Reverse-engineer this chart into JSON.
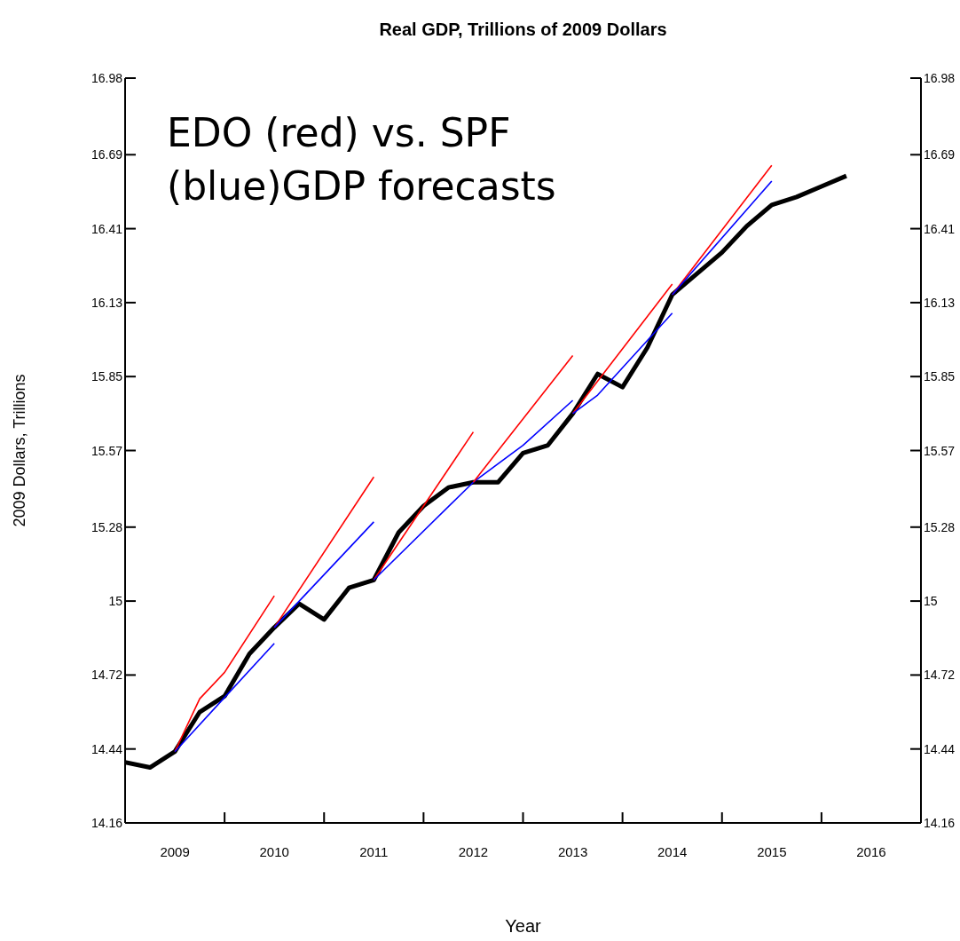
{
  "chart_data": {
    "type": "line",
    "title": "Real GDP, Trillions of 2009 Dollars",
    "xlabel": "Year",
    "ylabel": "2009 Dollars, Trillions",
    "annotations": [
      "EDO (red) vs. SPF (blue)GDP forecasts"
    ],
    "marker": "none",
    "line_style": "solid",
    "xlim": [
      2009,
      2017
    ],
    "xticks": [
      {
        "value": 2009.5,
        "label": "2009"
      },
      {
        "value": 2010.5,
        "label": "2010"
      },
      {
        "value": 2011.5,
        "label": "2011"
      },
      {
        "value": 2012.5,
        "label": "2012"
      },
      {
        "value": 2013.5,
        "label": "2013"
      },
      {
        "value": 2014.5,
        "label": "2014"
      },
      {
        "value": 2015.5,
        "label": "2015"
      },
      {
        "value": 2016.5,
        "label": "2016"
      },
      {
        "value": 2010,
        "label": null
      },
      {
        "value": 2011,
        "label": null
      },
      {
        "value": 2012,
        "label": null
      },
      {
        "value": 2013,
        "label": null
      },
      {
        "value": 2014,
        "label": null
      },
      {
        "value": 2015,
        "label": null
      },
      {
        "value": 2016,
        "label": null
      }
    ],
    "ylim": [
      14.16,
      16.98
    ],
    "yticks": [
      14.16,
      14.44,
      14.72,
      15,
      15.28,
      15.57,
      15.85,
      16.13,
      16.41,
      16.69,
      16.98
    ],
    "y2lim": [
      14.16,
      16.98
    ],
    "y2ticks": [
      14.16,
      14.44,
      14.72,
      15,
      15.28,
      15.57,
      15.85,
      16.13,
      16.41,
      16.69,
      16.98
    ],
    "series": [
      {
        "color": "#000000",
        "x": [
          2009,
          2009.25,
          2009.5,
          2009.75,
          2010,
          2010.25,
          2010.5,
          2010.75,
          2011,
          2011.25,
          2011.5,
          2011.75,
          2012,
          2012.25,
          2012.5,
          2012.75,
          2013,
          2013.25,
          2013.5,
          2013.75,
          2014,
          2014.25,
          2014.5,
          2014.75,
          2015,
          2015.25,
          2015.5,
          2015.75,
          2016,
          2016.25
        ],
        "values": [
          14.39,
          14.37,
          14.43,
          14.58,
          14.64,
          14.8,
          14.9,
          14.99,
          14.93,
          15.05,
          15.08,
          15.26,
          15.36,
          15.43,
          15.45,
          15.45,
          15.56,
          15.59,
          15.71,
          15.86,
          15.81,
          15.96,
          16.16,
          16.24,
          16.32,
          16.42,
          16.5,
          16.53,
          16.57,
          16.61
        ]
      },
      {
        "color": "#ff0000",
        "x": [
          2009.5,
          2009.75,
          2010,
          2010.5
        ],
        "values": [
          14.43,
          14.63,
          14.73,
          15.02
        ]
      },
      {
        "color": "#0000ff",
        "x": [
          2009.5,
          2010.5
        ],
        "values": [
          14.43,
          14.84
        ]
      },
      {
        "color": "#ff0000",
        "x": [
          2010.5,
          2011.5
        ],
        "values": [
          14.9,
          15.47
        ]
      },
      {
        "color": "#0000ff",
        "x": [
          2010.5,
          2011.5
        ],
        "values": [
          14.9,
          15.3
        ]
      },
      {
        "color": "#ff0000",
        "x": [
          2011.5,
          2012.5
        ],
        "values": [
          15.08,
          15.64
        ]
      },
      {
        "color": "#0000ff",
        "x": [
          2011.5,
          2012.5,
          2013,
          2013.5
        ],
        "values": [
          15.08,
          15.45,
          15.59,
          15.76
        ]
      },
      {
        "color": "#ff0000",
        "x": [
          2012.5,
          2013.5
        ],
        "values": [
          15.45,
          15.93
        ]
      },
      {
        "color": "#ff0000",
        "x": [
          2013.5,
          2014.5
        ],
        "values": [
          15.71,
          16.2
        ]
      },
      {
        "color": "#0000ff",
        "x": [
          2013.5,
          2013.75,
          2014.5
        ],
        "values": [
          15.71,
          15.78,
          16.09
        ]
      },
      {
        "color": "#ff0000",
        "x": [
          2014.5,
          2015.5
        ],
        "values": [
          16.16,
          16.65
        ]
      },
      {
        "color": "#0000ff",
        "x": [
          2014.5,
          2015.5
        ],
        "values": [
          16.16,
          16.59
        ]
      }
    ]
  }
}
